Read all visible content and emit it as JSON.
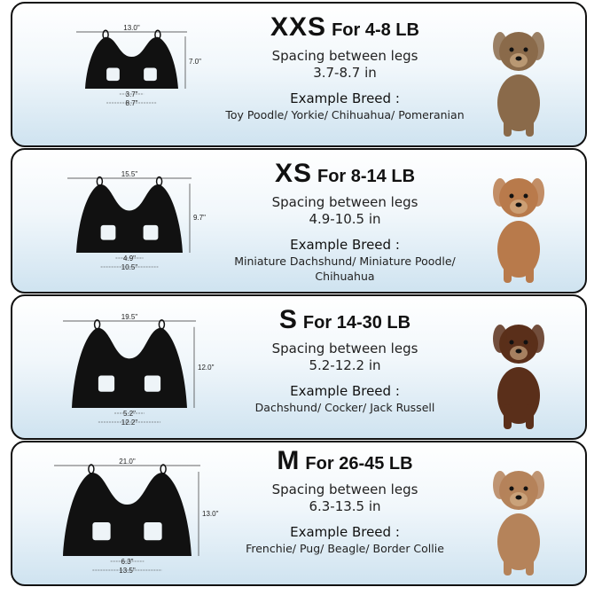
{
  "sizes": [
    {
      "size": "XXS",
      "weight": "For 4-8 LB",
      "spacing_label": "Spacing between legs",
      "spacing_range": "3.7-8.7 in",
      "breed_label": "Example Breed :",
      "breeds": "Toy Poodle/ Yorkie/ Chihuahua/ Pomeranian",
      "dims": {
        "width": "13.0\"",
        "height": "7.0\"",
        "inner": "3.7\"",
        "outer": "8.7\""
      },
      "dog": "yorkie",
      "dog_color": "#8a6a4a"
    },
    {
      "size": "XS",
      "weight": "For 8-14 LB",
      "spacing_label": "Spacing between legs",
      "spacing_range": "4.9-10.5 in",
      "breed_label": "Example Breed :",
      "breeds": "Miniature Dachshund/ Miniature Poodle/ Chihuahua",
      "dims": {
        "width": "15.5\"",
        "height": "9.7\"",
        "inner": "4.9\"",
        "outer": "10.5\""
      },
      "dog": "poodle",
      "dog_color": "#b87a4b"
    },
    {
      "size": "S",
      "weight": "For 14-30 LB",
      "spacing_label": "Spacing between legs",
      "spacing_range": "5.2-12.2 in",
      "breed_label": "Example Breed :",
      "breeds": "Dachshund/ Cocker/ Jack Russell",
      "dims": {
        "width": "19.5\"",
        "height": "12.0\"",
        "inner": "5.2\"",
        "outer": "12.2\""
      },
      "dog": "dachshund",
      "dog_color": "#5a2f1a"
    },
    {
      "size": "M",
      "weight": "For 26-45 LB",
      "spacing_label": "Spacing between legs",
      "spacing_range": "6.3-13.5 in",
      "breed_label": "Example Breed :",
      "breeds": "Frenchie/ Pug/ Beagle/ Border Collie",
      "dims": {
        "width": "21.0\"",
        "height": "13.0\"",
        "inner": "6.3\"",
        "outer": "13.5\""
      },
      "dog": "french-bulldog",
      "dog_color": "#b5835a"
    }
  ]
}
